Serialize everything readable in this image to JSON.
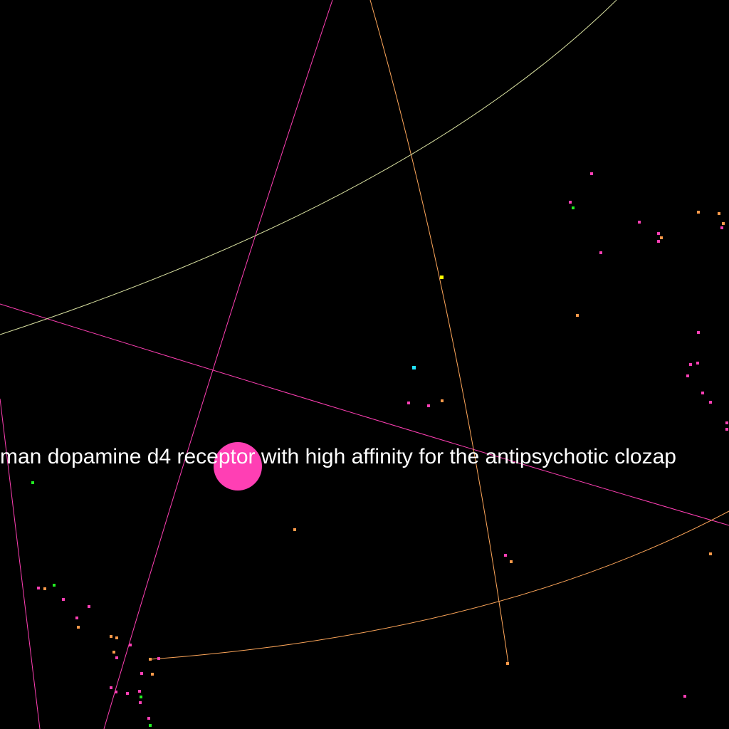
{
  "scene": {
    "label": "man dopamine d4 receptor with high affinity for the antipsychotic clozap",
    "colors": {
      "background": "#000000",
      "label": "#ffffff",
      "magenta": "#ff3fb4",
      "pink": "#ff55aa",
      "orange": "#ff9a4a",
      "peach": "#ffb070",
      "yellow": "#ffff00",
      "green": "#22ee22",
      "cyan": "#22e5ff",
      "olive": "#d8e0a0"
    }
  }
}
